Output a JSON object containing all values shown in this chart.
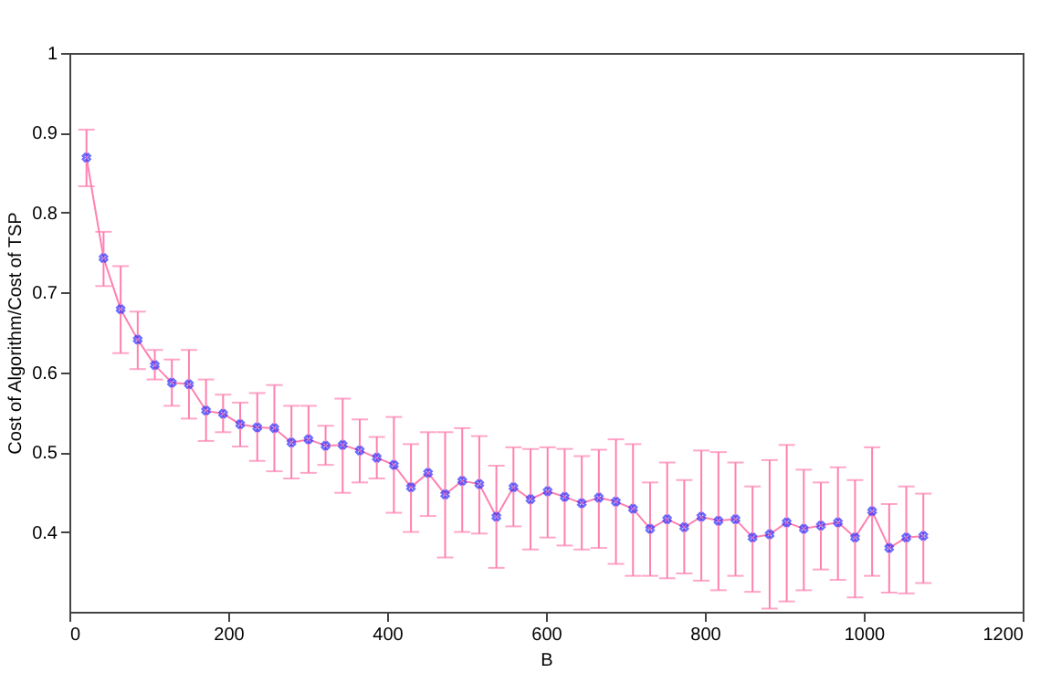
{
  "chart_data": {
    "type": "line",
    "xlabel": "B",
    "ylabel": "Cost of Algorithm/Cost of TSP",
    "x": [
      21.5,
      43,
      64.5,
      86,
      107.5,
      129,
      150.5,
      172,
      193.5,
      215,
      236.5,
      258,
      279.5,
      301,
      322.5,
      344,
      365.5,
      387,
      408.5,
      430,
      451.5,
      473,
      494.5,
      516,
      537.5,
      559,
      580.5,
      602,
      623.5,
      645,
      666.5,
      688,
      709.5,
      731,
      752.5,
      774,
      795.5,
      817,
      838.5,
      860,
      881.5,
      903,
      924.5,
      946,
      967.5,
      989,
      1010.5,
      1032,
      1053.5,
      1075
    ],
    "series": [
      {
        "color": "#ff80b0",
        "marker": "none",
        "line_style": "solid",
        "values": [
          0.869,
          0.743,
          0.679,
          0.641,
          0.609,
          0.587,
          0.585,
          0.552,
          0.548,
          0.535,
          0.531,
          0.53,
          0.512,
          0.516,
          0.508,
          0.509,
          0.502,
          0.493,
          0.484,
          0.456,
          0.474,
          0.447,
          0.464,
          0.46,
          0.419,
          0.456,
          0.441,
          0.451,
          0.444,
          0.436,
          0.443,
          0.438,
          0.429,
          0.404,
          0.416,
          0.406,
          0.419,
          0.414,
          0.416,
          0.393,
          0.397,
          0.412,
          0.404,
          0.408,
          0.412,
          0.393,
          0.426,
          0.38,
          0.393,
          0.395
        ],
        "errors": [
          [
            0.833,
            0.904
          ],
          [
            0.708,
            0.776
          ],
          [
            0.624,
            0.733
          ],
          [
            0.604,
            0.676
          ],
          [
            0.591,
            0.628
          ],
          [
            0.558,
            0.616
          ],
          [
            0.542,
            0.628
          ],
          [
            0.514,
            0.591
          ],
          [
            0.525,
            0.572
          ],
          [
            0.507,
            0.562
          ],
          [
            0.489,
            0.574
          ],
          [
            0.476,
            0.584
          ],
          [
            0.467,
            0.558
          ],
          [
            0.474,
            0.558
          ],
          [
            0.484,
            0.533
          ],
          [
            0.449,
            0.567
          ],
          [
            0.462,
            0.541
          ],
          [
            0.467,
            0.519
          ],
          [
            0.424,
            0.544
          ],
          [
            0.4,
            0.51
          ],
          [
            0.42,
            0.525
          ],
          [
            0.368,
            0.525
          ],
          [
            0.4,
            0.53
          ],
          [
            0.398,
            0.52
          ],
          [
            0.355,
            0.483
          ],
          [
            0.407,
            0.506
          ],
          [
            0.378,
            0.504
          ],
          [
            0.393,
            0.506
          ],
          [
            0.383,
            0.504
          ],
          [
            0.378,
            0.495
          ],
          [
            0.38,
            0.503
          ],
          [
            0.36,
            0.516
          ],
          [
            0.345,
            0.51
          ],
          [
            0.345,
            0.462
          ],
          [
            0.342,
            0.487
          ],
          [
            0.348,
            0.465
          ],
          [
            0.339,
            0.502
          ],
          [
            0.327,
            0.5
          ],
          [
            0.345,
            0.487
          ],
          [
            0.325,
            0.457
          ],
          [
            0.304,
            0.49
          ],
          [
            0.313,
            0.509
          ],
          [
            0.327,
            0.478
          ],
          [
            0.353,
            0.462
          ],
          [
            0.34,
            0.481
          ],
          [
            0.318,
            0.465
          ],
          [
            0.345,
            0.506
          ],
          [
            0.324,
            0.435
          ],
          [
            0.323,
            0.457
          ],
          [
            0.336,
            0.448
          ]
        ]
      },
      {
        "type": "scatter",
        "color": "#3030ff",
        "marker": "cross",
        "values": [
          0.869,
          0.743,
          0.679,
          0.641,
          0.609,
          0.587,
          0.585,
          0.552,
          0.548,
          0.535,
          0.531,
          0.53,
          0.512,
          0.516,
          0.508,
          0.509,
          0.502,
          0.493,
          0.484,
          0.456,
          0.474,
          0.447,
          0.464,
          0.46,
          0.419,
          0.456,
          0.441,
          0.451,
          0.444,
          0.436,
          0.443,
          0.438,
          0.429,
          0.404,
          0.416,
          0.406,
          0.419,
          0.414,
          0.416,
          0.393,
          0.397,
          0.412,
          0.404,
          0.408,
          0.412,
          0.393,
          0.426,
          0.38,
          0.393,
          0.395
        ]
      }
    ],
    "xlim": [
      0,
      1200
    ],
    "xticks": [
      0,
      200,
      400,
      600,
      800,
      1000,
      1200
    ],
    "ylim": [
      0.3,
      1
    ],
    "yticks": [
      0.4,
      0.5,
      0.6,
      0.7,
      0.8,
      0.9,
      1
    ],
    "grid": false
  }
}
